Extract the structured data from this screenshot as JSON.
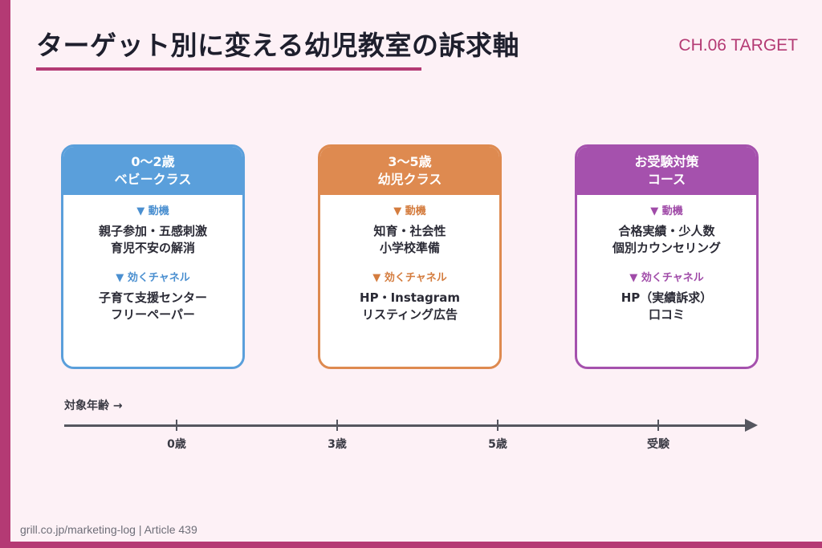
{
  "title": "ターゲット別に変える幼児教室の訴求軸",
  "chapter": "CH.06 TARGET",
  "cards": [
    {
      "header_line1": "0〜2歳",
      "header_line2": "ベビークラス",
      "motive_label": "▼ 動機",
      "motive_line1": "親子参加・五感刺激",
      "motive_line2": "育児不安の解消",
      "channel_label": "▼ 効くチャネル",
      "channel_line1": "子育て支援センター",
      "channel_line2": "フリーペーパー"
    },
    {
      "header_line1": "3〜5歳",
      "header_line2": "幼児クラス",
      "motive_label": "▼ 動機",
      "motive_line1": "知育・社会性",
      "motive_line2": "小学校準備",
      "channel_label": "▼ 効くチャネル",
      "channel_line1": "HP・Instagram",
      "channel_line2": "リスティング広告"
    },
    {
      "header_line1": "お受験対策",
      "header_line2": "コース",
      "motive_label": "▼ 動機",
      "motive_line1": "合格実績・少人数",
      "motive_line2": "個別カウンセリング",
      "channel_label": "▼ 効くチャネル",
      "channel_line1": "HP（実績訴求）",
      "channel_line2": "口コミ"
    }
  ],
  "axis": {
    "title": "対象年齢 →",
    "ticks": [
      "0歳",
      "3歳",
      "5歳",
      "受験"
    ]
  },
  "colors": {
    "accent": "#b43a74",
    "blue": "#5a9fdb",
    "orange": "#de8a50",
    "purple": "#a551ad"
  },
  "footer": "grill.co.jp/marketing-log | Article 439"
}
